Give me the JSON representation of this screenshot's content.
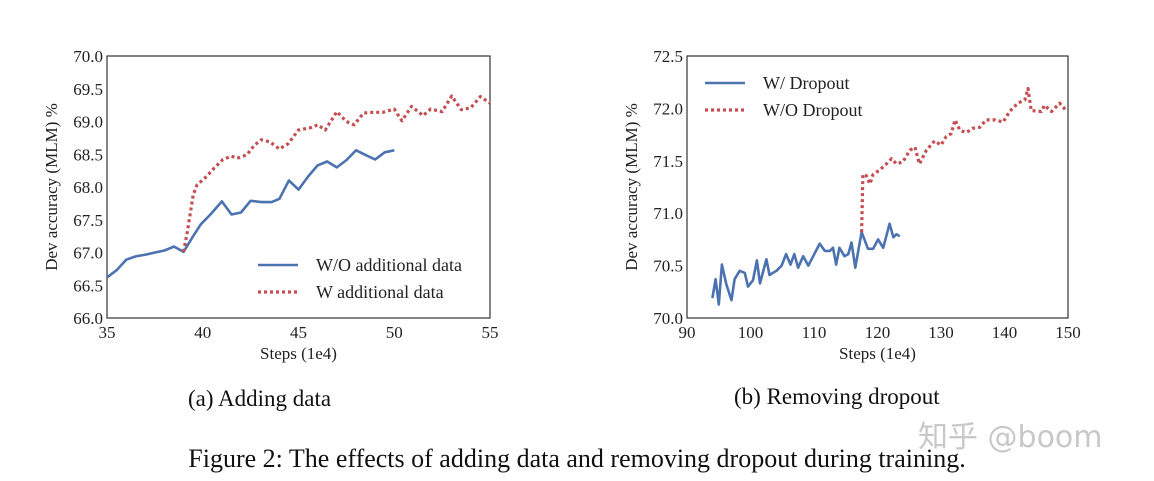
{
  "figure_caption": "Figure 2: The effects of adding data and removing dropout during training.",
  "watermark": "知乎 @boom",
  "colors": {
    "blue": "#4c72b0",
    "red": "#c44e52",
    "axis": "#333333"
  },
  "chart_data": [
    {
      "type": "line",
      "caption": "(a) Adding data",
      "xlabel": "Steps (1e4)",
      "ylabel": "Dev accuracy (MLM) %",
      "xlim": [
        35,
        55
      ],
      "ylim": [
        66.0,
        70.0
      ],
      "xticks": [
        "35",
        "40",
        "45",
        "50",
        "55"
      ],
      "yticks": [
        "66.0",
        "66.5",
        "67.0",
        "67.5",
        "68.0",
        "68.5",
        "69.0",
        "69.5",
        "70.0"
      ],
      "grid": false,
      "legend_position": "lower-right",
      "series": [
        {
          "name": "W/O additional data",
          "style": "solid",
          "color": "#4c72b0",
          "x": [
            35,
            35.5,
            36,
            36.5,
            37.05,
            37.5,
            38,
            38.5,
            39,
            39.5,
            39.9,
            40.4,
            41,
            41.5,
            42,
            42.5,
            43.05,
            43.6,
            44,
            44.5,
            45,
            45.5,
            46,
            46.5,
            47,
            47.5,
            48,
            48.5,
            49,
            49.5,
            50
          ],
          "y": [
            66.62,
            66.73,
            66.89,
            66.94,
            66.97,
            67.0,
            67.03,
            67.09,
            67.01,
            67.25,
            67.43,
            67.58,
            67.78,
            67.58,
            67.61,
            67.79,
            67.77,
            67.77,
            67.82,
            68.1,
            67.96,
            68.16,
            68.33,
            68.39,
            68.3,
            68.41,
            68.56,
            68.49,
            68.42,
            68.53,
            68.56
          ]
        },
        {
          "name": "W additional data",
          "style": "dotted",
          "color": "#c44e52",
          "x": [
            39,
            39.2,
            39.5,
            39.7,
            40.2,
            40.6,
            41.05,
            41.5,
            41.8,
            42.3,
            42.7,
            43.05,
            43.5,
            44,
            44.45,
            45,
            45.7,
            46,
            46.4,
            47,
            47.5,
            47.9,
            48.4,
            48.9,
            49.4,
            50,
            50.4,
            50.9,
            51.5,
            51.9,
            52.5,
            53,
            53.5,
            54,
            54.5,
            55
          ],
          "y": [
            67.01,
            67.32,
            67.88,
            68.03,
            68.16,
            68.29,
            68.42,
            68.47,
            68.44,
            68.49,
            68.64,
            68.72,
            68.69,
            68.58,
            68.66,
            68.87,
            68.91,
            68.95,
            68.87,
            69.15,
            69.0,
            68.95,
            69.13,
            69.14,
            69.14,
            69.19,
            69.01,
            69.23,
            69.09,
            69.19,
            69.15,
            69.39,
            69.18,
            69.21,
            69.38,
            69.28
          ]
        }
      ]
    },
    {
      "type": "line",
      "caption": "(b) Removing dropout",
      "xlabel": "Steps (1e4)",
      "ylabel": "Dev accuracy (MLM) %",
      "xlim": [
        90,
        150
      ],
      "ylim": [
        70.0,
        72.5
      ],
      "xticks": [
        "90",
        "100",
        "110",
        "120",
        "130",
        "140",
        "150"
      ],
      "yticks": [
        "70.0",
        "70.5",
        "71.0",
        "71.5",
        "72.0",
        "72.5"
      ],
      "grid": false,
      "legend_position": "upper-left",
      "series": [
        {
          "name": "W/ Dropout",
          "style": "solid",
          "color": "#4c72b0",
          "x": [
            94,
            94.5,
            95,
            95.5,
            96.2,
            97,
            97.5,
            98.3,
            99.1,
            99.6,
            100.4,
            101,
            101.5,
            102.5,
            103,
            104.1,
            104.9,
            105.6,
            106.3,
            106.9,
            107.5,
            108.3,
            109.1,
            109.8,
            110.9,
            111.7,
            112.5,
            113,
            113.5,
            114,
            114.8,
            115.4,
            115.9,
            116.5,
            117.5,
            118.5,
            119.3,
            120.1,
            120.9,
            121.9,
            122.5,
            123,
            123.5
          ],
          "y": [
            70.19,
            70.37,
            70.13,
            70.51,
            70.32,
            70.17,
            70.37,
            70.45,
            70.43,
            70.3,
            70.36,
            70.55,
            70.33,
            70.56,
            70.41,
            70.45,
            70.5,
            70.61,
            70.51,
            70.61,
            70.48,
            70.59,
            70.5,
            70.58,
            70.71,
            70.64,
            70.64,
            70.67,
            70.51,
            70.67,
            70.59,
            70.61,
            70.72,
            70.48,
            70.82,
            70.66,
            70.66,
            70.75,
            70.67,
            70.9,
            70.77,
            70.8,
            70.78
          ]
        },
        {
          "name": "W/O Dropout",
          "style": "dotted",
          "color": "#c44e52",
          "x": [
            117.5,
            117.7,
            118.2,
            118.8,
            119.3,
            120.3,
            121.4,
            122.2,
            123,
            124,
            125.1,
            125.9,
            126.6,
            127.7,
            129,
            130,
            130.8,
            131.6,
            132.2,
            133,
            134,
            135,
            136.1,
            137.1,
            138.5,
            139.8,
            140.8,
            142.1,
            143.2,
            143.7,
            144.2,
            145.8,
            146.3,
            147.4,
            148.7,
            149.7
          ],
          "y": [
            70.82,
            71.37,
            71.36,
            71.28,
            71.37,
            71.41,
            71.47,
            71.52,
            71.47,
            71.49,
            71.6,
            71.63,
            71.47,
            71.6,
            71.69,
            71.65,
            71.73,
            71.76,
            71.89,
            71.79,
            71.77,
            71.81,
            71.82,
            71.89,
            71.89,
            71.87,
            71.97,
            72.05,
            72.08,
            72.19,
            71.98,
            71.97,
            72.03,
            71.97,
            72.05,
            71.98
          ]
        }
      ]
    }
  ]
}
